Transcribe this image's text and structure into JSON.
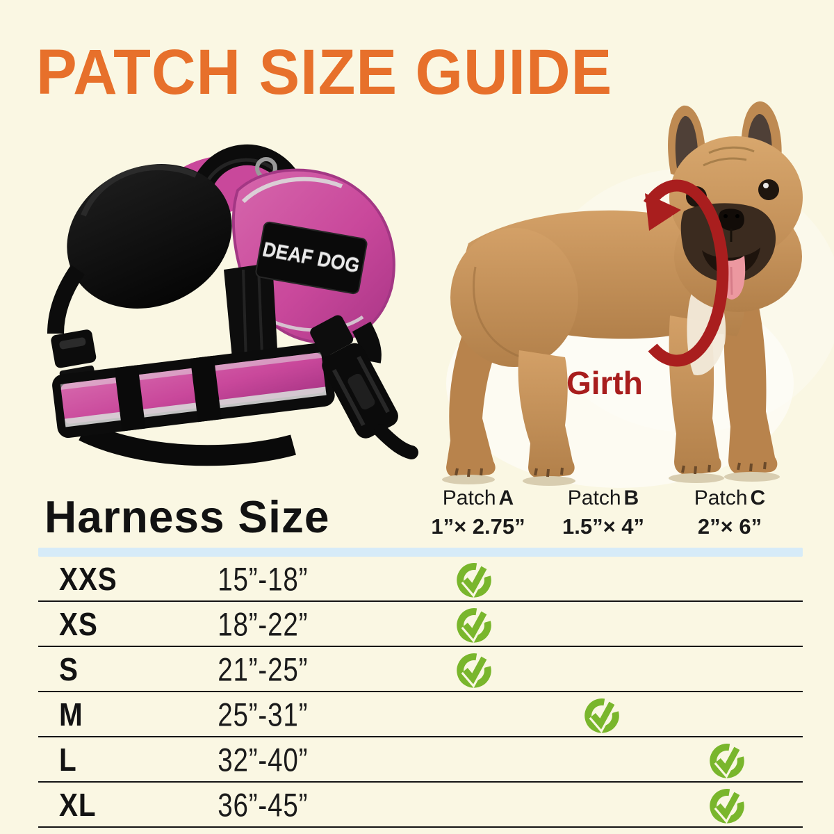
{
  "page": {
    "title": "PATCH SIZE GUIDE"
  },
  "colors": {
    "background": "#FAF7E3",
    "title_orange": "#E7702B",
    "girth_red": "#A81D1D",
    "check_green": "#79B62C",
    "header_bar_blue": "#D6EBF8",
    "harness_pink": "#C9489B",
    "patch_black": "#0A0A0A"
  },
  "harness": {
    "patch_text": "DEAF DOG"
  },
  "dog": {
    "girth_label": "Girth"
  },
  "table": {
    "header": "Harness Size",
    "columns": [
      {
        "label": "Patch",
        "letter": "A",
        "size": "1”× 2.75”"
      },
      {
        "label": "Patch",
        "letter": "B",
        "size": "1.5”× 4”"
      },
      {
        "label": "Patch",
        "letter": "C",
        "size": "2”× 6”"
      }
    ],
    "rows": [
      {
        "size": "XXS",
        "girth": "15”-18”",
        "patch": "A"
      },
      {
        "size": "XS",
        "girth": "18”-22”",
        "patch": "A"
      },
      {
        "size": "S",
        "girth": "21”-25”",
        "patch": "A"
      },
      {
        "size": "M",
        "girth": "25”-31”",
        "patch": "B"
      },
      {
        "size": "L",
        "girth": "32”-40”",
        "patch": "C"
      },
      {
        "size": "XL",
        "girth": "36”-45”",
        "patch": "C"
      }
    ]
  }
}
